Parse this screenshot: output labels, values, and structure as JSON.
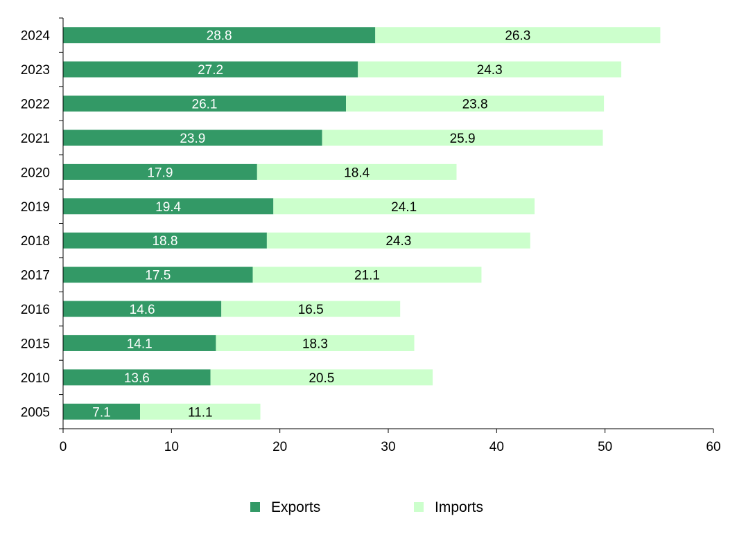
{
  "chart_data": {
    "type": "bar",
    "orientation": "horizontal",
    "stacked": true,
    "categories": [
      "2024",
      "2023",
      "2022",
      "2021",
      "2020",
      "2019",
      "2018",
      "2017",
      "2016",
      "2015",
      "2010",
      "2005"
    ],
    "series": [
      {
        "name": "Exports",
        "color": "#339966",
        "label_color": "#ffffff",
        "values": [
          28.8,
          27.2,
          26.1,
          23.9,
          17.9,
          19.4,
          18.8,
          17.5,
          14.6,
          14.1,
          13.6,
          7.1
        ]
      },
      {
        "name": "Imports",
        "color": "#ccffcc",
        "label_color": "#000000",
        "values": [
          26.3,
          24.3,
          23.8,
          25.9,
          18.4,
          24.1,
          24.3,
          21.1,
          16.5,
          18.3,
          20.5,
          11.1
        ]
      }
    ],
    "x_ticks": [
      "0",
      "10",
      "20",
      "30",
      "40",
      "50",
      "60"
    ],
    "xlim": [
      0,
      60
    ],
    "grid": false,
    "legend_position": "bottom"
  }
}
